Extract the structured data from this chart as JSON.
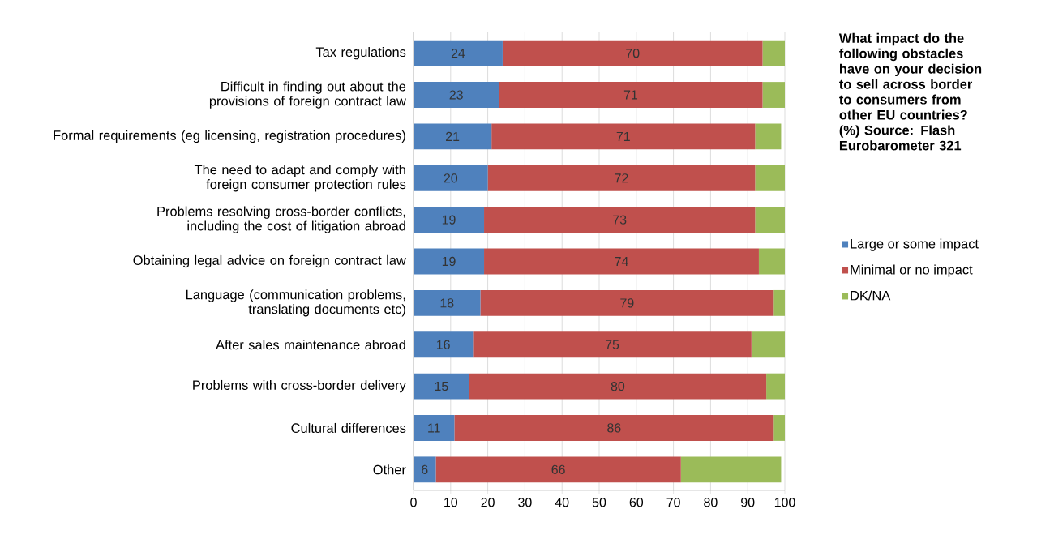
{
  "chart_data": {
    "type": "bar",
    "orientation": "horizontal",
    "stacked": true,
    "title": "What impact do the following obstacles have on your decision to sell across border to consumers from other EU countries? (%)  Source: Flash Eurobarometer 321",
    "categories": [
      "Tax regulations",
      "Difficult in finding out about the provisions of foreign contract law",
      "Formal requirements (eg licensing, registration procedures)",
      "The need to adapt and comply with foreign consumer protection rules",
      "Problems resolving cross-border conflicts, including the cost of litigation abroad",
      "Obtaining legal advice on foreign contract law",
      "Language (communication problems, translating documents etc)",
      "After sales maintenance abroad",
      "Problems with cross-border delivery",
      "Cultural differences",
      "Other"
    ],
    "series": [
      {
        "name": "Large or some impact",
        "color": "#4f81bd",
        "values": [
          24,
          23,
          21,
          20,
          19,
          19,
          18,
          16,
          15,
          11,
          6
        ],
        "value_labels": [
          "24",
          "23",
          "21",
          "20",
          "19",
          "19",
          "18",
          "16",
          "15",
          "11",
          "6"
        ]
      },
      {
        "name": "Minimal or no impact",
        "color": "#c0504d",
        "values": [
          70,
          71,
          71,
          72,
          73,
          74,
          79,
          75,
          80,
          86,
          66
        ],
        "value_labels": [
          "70",
          "71",
          "71",
          "72",
          "73",
          "74",
          "79",
          "75",
          "80",
          "86",
          "66"
        ]
      },
      {
        "name": "DK/NA",
        "color": "#9bbb59",
        "values": [
          6,
          6,
          7,
          8,
          8,
          7,
          3,
          9,
          5,
          3,
          27
        ]
      }
    ],
    "xlim": [
      0,
      100
    ],
    "xticks": [
      0,
      10,
      20,
      30,
      40,
      50,
      60,
      70,
      80,
      90,
      100
    ],
    "grid": "x",
    "legend": "right"
  }
}
